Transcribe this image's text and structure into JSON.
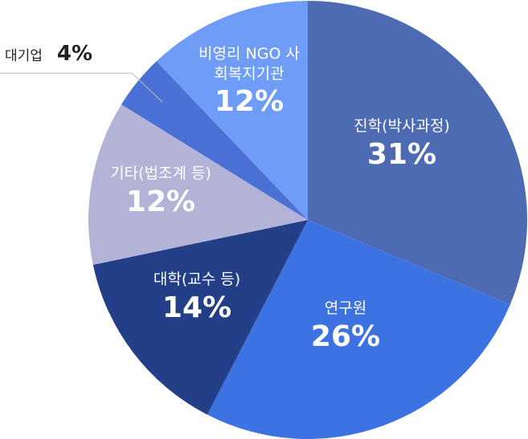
{
  "chart_data": {
    "type": "pie",
    "categories": [
      "진학(박사과정)",
      "연구원",
      "대학(교수 등)",
      "기타(법조계 등)",
      "대기업",
      "비영리 NGO 사회복지기관"
    ],
    "values": [
      31,
      26,
      14,
      12,
      4,
      12
    ],
    "value_labels": [
      "31%",
      "26%",
      "14%",
      "12%",
      "4%",
      "12%"
    ],
    "colors": [
      "#4c6bb3",
      "#3c72e2",
      "#233f88",
      "#b2b3d7",
      "#4b71d7",
      "#6f9cf6"
    ]
  }
}
